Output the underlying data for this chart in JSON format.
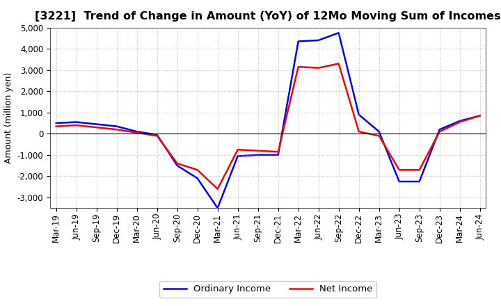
{
  "title": "[3221]  Trend of Change in Amount (YoY) of 12Mo Moving Sum of Incomes",
  "ylabel": "Amount (million yen)",
  "xlabels": [
    "Mar-19",
    "Jun-19",
    "Sep-19",
    "Dec-19",
    "Mar-20",
    "Jun-20",
    "Sep-20",
    "Dec-20",
    "Mar-21",
    "Jun-21",
    "Sep-21",
    "Dec-21",
    "Mar-22",
    "Jun-22",
    "Sep-22",
    "Dec-22",
    "Mar-23",
    "Jun-23",
    "Sep-23",
    "Dec-23",
    "Mar-24",
    "Jun-24"
  ],
  "ordinary_income": [
    500,
    550,
    450,
    350,
    100,
    -50,
    -1500,
    -2100,
    -3500,
    -1050,
    -1000,
    -1000,
    4350,
    4400,
    4750,
    900,
    100,
    -2250,
    -2250,
    200,
    600,
    850
  ],
  "net_income": [
    350,
    400,
    300,
    200,
    50,
    -100,
    -1400,
    -1700,
    -2600,
    -750,
    -800,
    -850,
    3150,
    3100,
    3300,
    100,
    -100,
    -1700,
    -1700,
    100,
    550,
    850
  ],
  "ordinary_income_color": "#0000ff",
  "net_income_color": "#ff0000",
  "ylim": [
    -3500,
    5000
  ],
  "yticks": [
    -3000,
    -2000,
    -1000,
    0,
    1000,
    2000,
    3000,
    4000,
    5000
  ],
  "background_color": "#ffffff",
  "grid_color": "#999999",
  "line_width": 1.8,
  "legend_ordinary": "Ordinary Income",
  "legend_net": "Net Income",
  "title_fontsize": 11.5,
  "ylabel_fontsize": 9,
  "tick_fontsize": 8.5,
  "legend_fontsize": 9.5
}
